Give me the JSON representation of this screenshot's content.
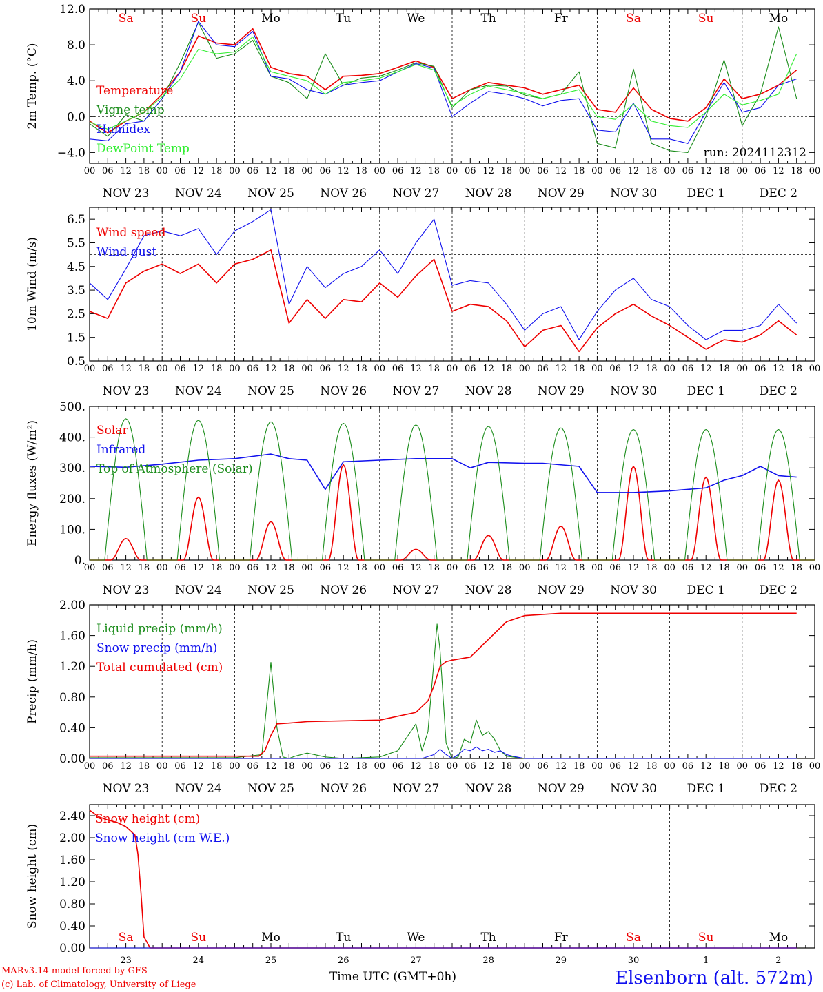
{
  "run_label": "run: 2024112312",
  "station": "Elsenborn (alt. 572m)",
  "footer": {
    "model": "MARv3.14 model forced by GFS",
    "credit": "(c) Lab. of Climatology, University of Liege",
    "xaxis_title": "Time UTC (GMT+0h)"
  },
  "days": [
    "NOV 23",
    "NOV 24",
    "NOV 25",
    "NOV 26",
    "NOV 27",
    "NOV 28",
    "NOV 29",
    "NOV 30",
    "DEC  1",
    "DEC  2"
  ],
  "weekdays": [
    {
      "label": "Sa",
      "color": "#ee0000"
    },
    {
      "label": "Su",
      "color": "#ee0000"
    },
    {
      "label": "Mo",
      "color": "#000000"
    },
    {
      "label": "Tu",
      "color": "#000000"
    },
    {
      "label": "We",
      "color": "#000000"
    },
    {
      "label": "Th",
      "color": "#000000"
    },
    {
      "label": "Fr",
      "color": "#000000"
    },
    {
      "label": "Sa",
      "color": "#ee0000"
    },
    {
      "label": "Su",
      "color": "#ee0000"
    },
    {
      "label": "Mo",
      "color": "#000000"
    }
  ],
  "hour_labels": [
    "00",
    "06",
    "12",
    "18"
  ],
  "final_hour_label": "00",
  "bottom_day_numbers": [
    "23",
    "24",
    "25",
    "26",
    "27",
    "28",
    "29",
    "30",
    "1",
    "2"
  ],
  "colors": {
    "red": "#ee0000",
    "green": "#1a8c1a",
    "blue": "#1111ee",
    "lightgreen": "#33ee33"
  },
  "chart_data": [
    {
      "type": "line",
      "ylabel": "2m Temp. (°C)",
      "ylim": [
        -5.2,
        12.0
      ],
      "yticks": [
        -4.0,
        0.0,
        4.0,
        8.0,
        12.0
      ],
      "ytick_labels": [
        "−4.0",
        "0.0",
        "4.0",
        "8.0",
        "12.0"
      ],
      "refline": 0.0,
      "x_hours": [
        0,
        6,
        12,
        18,
        24,
        30,
        36,
        42,
        48,
        54,
        60,
        66,
        72,
        78,
        84,
        90,
        96,
        102,
        108,
        114,
        120,
        126,
        132,
        138,
        144,
        150,
        156,
        162,
        168,
        174,
        180,
        186,
        192,
        198,
        204,
        210,
        216,
        222,
        228,
        234
      ],
      "series": [
        {
          "name": "Temperature",
          "color": "red",
          "values": [
            -0.5,
            -1.8,
            -0.5,
            0.5,
            2.5,
            5.0,
            9.0,
            8.2,
            8.0,
            9.8,
            5.5,
            4.8,
            4.5,
            3.0,
            4.5,
            4.6,
            4.8,
            5.5,
            6.2,
            5.5,
            2.0,
            3.0,
            3.8,
            3.5,
            3.2,
            2.5,
            3.0,
            3.5,
            0.8,
            0.5,
            3.2,
            0.8,
            -0.2,
            -0.5,
            1.0,
            4.2,
            2.0,
            2.5,
            3.5,
            5.2
          ]
        },
        {
          "name": "Vigne temp",
          "color": "green",
          "values": [
            -0.8,
            -2.2,
            0.2,
            -0.5,
            2.0,
            6.0,
            10.5,
            6.5,
            7.0,
            8.5,
            4.5,
            3.8,
            2.0,
            7.0,
            3.5,
            4.3,
            4.5,
            5.2,
            6.0,
            5.6,
            1.0,
            3.0,
            3.5,
            3.4,
            2.4,
            2.0,
            2.5,
            5.0,
            -3.0,
            -3.5,
            5.3,
            -3.0,
            -3.8,
            -4.0,
            0.0,
            6.3,
            -1.0,
            2.5,
            10.0,
            2.0
          ]
        },
        {
          "name": "Humidex",
          "color": "blue",
          "values": [
            -2.5,
            -2.7,
            -0.8,
            -0.5,
            2.0,
            5.0,
            10.6,
            8.0,
            7.8,
            9.5,
            4.5,
            4.2,
            3.0,
            2.5,
            3.5,
            3.8,
            4.0,
            5.0,
            5.9,
            5.4,
            0.0,
            1.5,
            2.8,
            2.5,
            2.0,
            1.2,
            1.8,
            2.0,
            -1.5,
            -1.7,
            1.5,
            -2.5,
            -2.5,
            -3.0,
            0.5,
            3.8,
            0.5,
            1.0,
            3.5,
            4.2
          ]
        },
        {
          "name": "DewPoint Temp",
          "color": "lightgreen",
          "values": [
            -0.6,
            -1.4,
            -0.5,
            0.5,
            2.2,
            4.2,
            7.5,
            7.0,
            7.2,
            8.9,
            5.0,
            4.5,
            4.0,
            2.5,
            3.8,
            4.0,
            4.3,
            5.0,
            5.8,
            5.2,
            1.2,
            2.5,
            3.4,
            3.0,
            2.6,
            2.0,
            2.5,
            3.0,
            0.0,
            -0.3,
            1.4,
            -0.5,
            -1.0,
            -1.2,
            0.5,
            2.5,
            1.3,
            1.8,
            2.5,
            7.0
          ]
        }
      ]
    },
    {
      "type": "line",
      "ylabel": "10m Wind (m/s)",
      "ylim": [
        0.5,
        7.0
      ],
      "yticks": [
        0.5,
        1.5,
        2.5,
        3.5,
        4.5,
        5.5,
        6.5
      ],
      "ytick_labels": [
        "0.5",
        "1.5",
        "2.5",
        "3.5",
        "4.5",
        "5.5",
        "6.5"
      ],
      "refline": 5.0,
      "x_hours": [
        0,
        6,
        12,
        18,
        24,
        30,
        36,
        42,
        48,
        54,
        60,
        66,
        72,
        78,
        84,
        90,
        96,
        102,
        108,
        114,
        120,
        126,
        132,
        138,
        144,
        150,
        156,
        162,
        168,
        174,
        180,
        186,
        192,
        198,
        204,
        210,
        216,
        222,
        228,
        234
      ],
      "series": [
        {
          "name": "Wind speed",
          "color": "red",
          "values": [
            2.6,
            2.3,
            3.8,
            4.3,
            4.6,
            4.2,
            4.6,
            3.8,
            4.6,
            4.8,
            5.2,
            2.1,
            3.1,
            2.3,
            3.1,
            3.0,
            3.8,
            3.2,
            4.1,
            4.8,
            2.6,
            2.9,
            2.8,
            2.2,
            1.1,
            1.8,
            2.0,
            0.9,
            1.9,
            2.5,
            2.9,
            2.4,
            2.0,
            1.5,
            1.0,
            1.4,
            1.3,
            1.6,
            2.2,
            1.6
          ]
        },
        {
          "name": "Wind gust",
          "color": "blue",
          "values": [
            3.8,
            3.1,
            4.4,
            5.8,
            6.0,
            5.8,
            6.1,
            5.0,
            6.0,
            6.4,
            6.9,
            2.9,
            4.5,
            3.6,
            4.2,
            4.5,
            5.2,
            4.2,
            5.5,
            6.5,
            3.7,
            3.9,
            3.8,
            2.9,
            1.8,
            2.5,
            2.8,
            1.4,
            2.6,
            3.5,
            4.0,
            3.1,
            2.8,
            2.0,
            1.4,
            1.8,
            1.8,
            2.0,
            2.9,
            2.1
          ]
        }
      ]
    },
    {
      "type": "line",
      "ylabel": "Energy fluxes (W/m²)",
      "ylim": [
        0,
        500
      ],
      "yticks": [
        0,
        100,
        200,
        300,
        400,
        500
      ],
      "ytick_labels": [
        "0.",
        "100.",
        "200.",
        "300.",
        "400.",
        "500."
      ],
      "series": [
        {
          "name": "Solar",
          "color": "red",
          "day_peaks": [
            70,
            205,
            125,
            310,
            35,
            80,
            110,
            305,
            270,
            260
          ]
        },
        {
          "name": "Infrared",
          "color": "blue",
          "x_hours": [
            0,
            12,
            24,
            36,
            48,
            60,
            66,
            72,
            78,
            84,
            96,
            108,
            120,
            126,
            132,
            144,
            150,
            162,
            168,
            180,
            192,
            204,
            210,
            216,
            222,
            228,
            234
          ],
          "values": [
            305,
            302,
            312,
            325,
            330,
            345,
            330,
            325,
            230,
            320,
            325,
            330,
            330,
            300,
            318,
            315,
            315,
            305,
            220,
            220,
            225,
            235,
            260,
            275,
            305,
            275,
            270
          ]
        },
        {
          "name": "Top of Atmosphere (Solar)",
          "color": "green",
          "day_peaks": [
            460,
            455,
            450,
            445,
            440,
            435,
            430,
            425,
            425,
            425
          ]
        }
      ]
    },
    {
      "type": "line",
      "ylabel": "Precip (mm/h)",
      "ylim": [
        0,
        2.0
      ],
      "yticks": [
        0,
        0.4,
        0.8,
        1.2,
        1.6,
        2.0
      ],
      "ytick_labels": [
        "0.00",
        "0.40",
        "0.80",
        "1.20",
        "1.60",
        "2.00"
      ],
      "series": [
        {
          "name": "Liquid precip (mm/h)",
          "color": "green",
          "x_hours": [
            0,
            12,
            24,
            36,
            48,
            57,
            60,
            62,
            64,
            66,
            68,
            72,
            78,
            84,
            96,
            102,
            108,
            110,
            112,
            115,
            116,
            118,
            120,
            122,
            124,
            126,
            128,
            130,
            132,
            134,
            136,
            138,
            140,
            144,
            150,
            234
          ],
          "values": [
            0.01,
            0.01,
            0.01,
            0.01,
            0.01,
            0.05,
            1.25,
            0.4,
            0.02,
            0.0,
            0.03,
            0.07,
            0.02,
            0.0,
            0.02,
            0.1,
            0.45,
            0.1,
            0.35,
            1.75,
            1.4,
            0.2,
            0.0,
            0.02,
            0.25,
            0.2,
            0.5,
            0.3,
            0.35,
            0.25,
            0.1,
            0.03,
            0.02,
            0.0,
            0.0,
            0.0
          ]
        },
        {
          "name": "Snow precip (mm/h)",
          "color": "blue",
          "x_hours": [
            0,
            110,
            114,
            116,
            118,
            120,
            122,
            124,
            126,
            128,
            130,
            132,
            134,
            136,
            138,
            140,
            144,
            234
          ],
          "values": [
            0.0,
            0.0,
            0.05,
            0.12,
            0.05,
            0.0,
            0.05,
            0.12,
            0.1,
            0.15,
            0.1,
            0.12,
            0.08,
            0.1,
            0.05,
            0.03,
            0.0,
            0.0
          ]
        },
        {
          "name": "Total cumulated (cm)",
          "color": "red",
          "x_hours": [
            0,
            56,
            58,
            60,
            62,
            66,
            72,
            96,
            108,
            112,
            114,
            116,
            118,
            120,
            126,
            132,
            138,
            144,
            156,
            180,
            234
          ],
          "values": [
            0.03,
            0.03,
            0.1,
            0.3,
            0.45,
            0.46,
            0.48,
            0.5,
            0.6,
            0.75,
            0.95,
            1.2,
            1.26,
            1.28,
            1.32,
            1.55,
            1.78,
            1.86,
            1.89,
            1.89,
            1.89
          ]
        }
      ]
    },
    {
      "type": "line",
      "ylabel": "Snow height (cm)",
      "ylim": [
        0,
        2.6
      ],
      "yticks": [
        0,
        0.4,
        0.8,
        1.2,
        1.6,
        2.0,
        2.4
      ],
      "ytick_labels": [
        "0.00",
        "0.40",
        "0.80",
        "1.20",
        "1.60",
        "2.00",
        "2.40"
      ],
      "series": [
        {
          "name": "Snow height (cm)",
          "color": "red",
          "x_hours": [
            0,
            3,
            6,
            9,
            12,
            15,
            16,
            17,
            18,
            20,
            22,
            234
          ],
          "values": [
            2.5,
            2.38,
            2.32,
            2.28,
            2.2,
            2.05,
            1.7,
            1.0,
            0.2,
            0.0,
            0.0,
            0.0
          ]
        },
        {
          "name": "Snow height (cm W.E.)",
          "color": "blue",
          "x_hours": [
            0,
            234
          ],
          "values": [
            0.0,
            0.0
          ]
        }
      ]
    }
  ]
}
